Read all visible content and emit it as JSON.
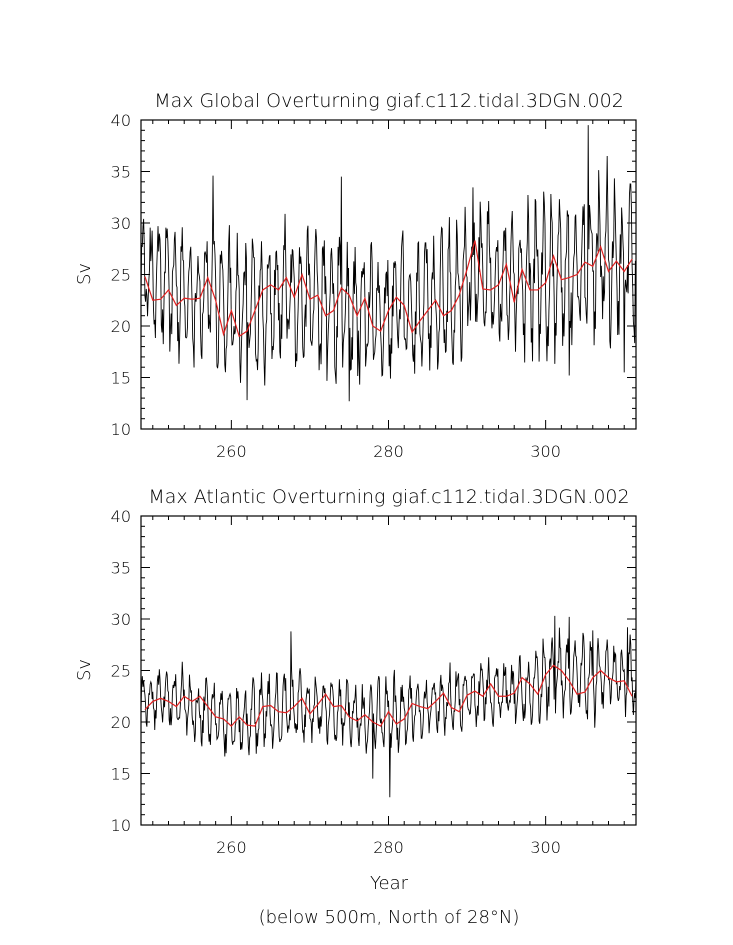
{
  "chart_data": [
    {
      "type": "line",
      "title": "Max Global Overturning giaf.c112.tidal.3DGN.002",
      "xlabel": "",
      "ylabel": "Sv",
      "xlim": [
        248.5,
        311.5
      ],
      "ylim": [
        10,
        40
      ],
      "xticks": [
        260,
        280,
        300
      ],
      "yticks": [
        10,
        15,
        20,
        25,
        30,
        35,
        40
      ],
      "series": [
        {
          "color": "#000000",
          "kind": "monthly",
          "base": [
            [
              249,
              25
            ],
            [
              252,
              24
            ],
            [
              255,
              23
            ],
            [
              258,
              23.5
            ],
            [
              261,
              21.5
            ],
            [
              264,
              22.5
            ],
            [
              267,
              23.5
            ],
            [
              270,
              22.5
            ],
            [
              273,
              22
            ],
            [
              276,
              21
            ],
            [
              279,
              21
            ],
            [
              282,
              21.5
            ],
            [
              285,
              22
            ],
            [
              288,
              23
            ],
            [
              291,
              26
            ],
            [
              294,
              25
            ],
            [
              297,
              24.5
            ],
            [
              300,
              25
            ],
            [
              303,
              25.5
            ],
            [
              306,
              26
            ],
            [
              309,
              26
            ],
            [
              311,
              26
            ]
          ],
          "amp": [
            [
              249,
              5.5
            ],
            [
              255,
              5.5
            ],
            [
              260,
              6
            ],
            [
              265,
              6
            ],
            [
              270,
              6.5
            ],
            [
              275,
              7
            ],
            [
              280,
              6
            ],
            [
              285,
              6
            ],
            [
              290,
              6.5
            ],
            [
              295,
              6
            ],
            [
              300,
              7
            ],
            [
              305,
              7
            ],
            [
              311,
              6.5
            ]
          ],
          "peaks": [
            [
              257.7,
              34.6
            ],
            [
              274.0,
              34.5
            ],
            [
              305.4,
              39.5
            ],
            [
              307.8,
              36.5
            ]
          ],
          "troughs": [
            [
              262.0,
              12.8
            ],
            [
              275.0,
              12.7
            ],
            [
              303.0,
              15.2
            ],
            [
              310.0,
              15.5
            ]
          ]
        },
        {
          "color": "#e02020",
          "kind": "annual",
          "points": [
            [
              249,
              24.8
            ],
            [
              250,
              22.5
            ],
            [
              251,
              22.6
            ],
            [
              252,
              23.5
            ],
            [
              253,
              22.0
            ],
            [
              254,
              22.7
            ],
            [
              255,
              22.6
            ],
            [
              256,
              22.7
            ],
            [
              257,
              24.7
            ],
            [
              258,
              22.5
            ],
            [
              259,
              19.2
            ],
            [
              260,
              21.5
            ],
            [
              261,
              19.0
            ],
            [
              262,
              19.5
            ],
            [
              263,
              21.5
            ],
            [
              264,
              23.5
            ],
            [
              265,
              24.0
            ],
            [
              266,
              23.5
            ],
            [
              267,
              24.7
            ],
            [
              268,
              22.8
            ],
            [
              269,
              25.0
            ],
            [
              270,
              22.6
            ],
            [
              271,
              23.0
            ],
            [
              272,
              21.0
            ],
            [
              273,
              21.5
            ],
            [
              274,
              23.7
            ],
            [
              275,
              23.0
            ],
            [
              276,
              21.0
            ],
            [
              277,
              22.7
            ],
            [
              278,
              20.0
            ],
            [
              279,
              19.5
            ],
            [
              280,
              21.5
            ],
            [
              281,
              22.8
            ],
            [
              282,
              22.0
            ],
            [
              283,
              19.4
            ],
            [
              284,
              20.5
            ],
            [
              285,
              21.5
            ],
            [
              286,
              22.5
            ],
            [
              287,
              21.0
            ],
            [
              288,
              21.5
            ],
            [
              289,
              23.0
            ],
            [
              290,
              25.5
            ],
            [
              291,
              28.3
            ],
            [
              292,
              23.6
            ],
            [
              293,
              23.5
            ],
            [
              294,
              24.0
            ],
            [
              295,
              26.0
            ],
            [
              296,
              22.3
            ],
            [
              297,
              25.5
            ],
            [
              298,
              23.5
            ],
            [
              299,
              23.5
            ],
            [
              300,
              24.2
            ],
            [
              301,
              26.8
            ],
            [
              302,
              24.5
            ],
            [
              303,
              24.7
            ],
            [
              304,
              25.0
            ],
            [
              305,
              26.2
            ],
            [
              306,
              25.8
            ],
            [
              307,
              27.7
            ],
            [
              308,
              25.3
            ],
            [
              309,
              26.3
            ],
            [
              310,
              25.3
            ],
            [
              311,
              26.5
            ]
          ]
        }
      ]
    },
    {
      "type": "line",
      "title": "Max Atlantic Overturning giaf.c112.tidal.3DGN.002",
      "xlabel": "Year",
      "ylabel": "Sv",
      "xlim": [
        248.5,
        311.5
      ],
      "ylim": [
        10,
        40
      ],
      "xticks": [
        260,
        280,
        300
      ],
      "yticks": [
        10,
        15,
        20,
        25,
        30,
        35,
        40
      ],
      "series": [
        {
          "color": "#000000",
          "kind": "monthly",
          "base": [
            [
              249,
              22
            ],
            [
              253,
              22.5
            ],
            [
              257,
              21
            ],
            [
              261,
              20
            ],
            [
              265,
              21
            ],
            [
              269,
              21.5
            ],
            [
              273,
              21
            ],
            [
              277,
              20.5
            ],
            [
              281,
              20.5
            ],
            [
              285,
              21.5
            ],
            [
              289,
              22.5
            ],
            [
              293,
              23
            ],
            [
              297,
              23
            ],
            [
              301,
              24.5
            ],
            [
              305,
              24.5
            ],
            [
              309,
              24
            ],
            [
              311,
              24
            ]
          ],
          "amp": [
            [
              249,
              2.5
            ],
            [
              255,
              3
            ],
            [
              260,
              3
            ],
            [
              265,
              3.5
            ],
            [
              270,
              3
            ],
            [
              275,
              3
            ],
            [
              280,
              3.5
            ],
            [
              285,
              2.5
            ],
            [
              290,
              3
            ],
            [
              295,
              3
            ],
            [
              300,
              3.5
            ],
            [
              305,
              3.5
            ],
            [
              311,
              3.5
            ]
          ],
          "peaks": [
            [
              267.6,
              28.8
            ],
            [
              301.2,
              30.3
            ],
            [
              303.0,
              30.2
            ],
            [
              306.0,
              28.9
            ],
            [
              310.4,
              29.2
            ]
          ],
          "troughs": [
            [
              280.2,
              12.7
            ],
            [
              278.0,
              14.5
            ]
          ]
        },
        {
          "color": "#e02020",
          "kind": "annual",
          "points": [
            [
              249,
              21.2
            ],
            [
              250,
              22.0
            ],
            [
              251,
              22.3
            ],
            [
              252,
              22.0
            ],
            [
              253,
              21.5
            ],
            [
              254,
              22.5
            ],
            [
              255,
              22.0
            ],
            [
              256,
              22.5
            ],
            [
              257,
              21.5
            ],
            [
              258,
              20.5
            ],
            [
              259,
              20.3
            ],
            [
              260,
              19.6
            ],
            [
              261,
              20.5
            ],
            [
              262,
              19.7
            ],
            [
              263,
              19.6
            ],
            [
              264,
              21.5
            ],
            [
              265,
              21.6
            ],
            [
              266,
              21.0
            ],
            [
              267,
              20.9
            ],
            [
              268,
              21.5
            ],
            [
              269,
              22.3
            ],
            [
              270,
              20.8
            ],
            [
              271,
              21.7
            ],
            [
              272,
              22.7
            ],
            [
              273,
              21.5
            ],
            [
              274,
              21.6
            ],
            [
              275,
              20.5
            ],
            [
              276,
              20.1
            ],
            [
              277,
              20.7
            ],
            [
              278,
              20.0
            ],
            [
              279,
              19.6
            ],
            [
              280,
              21.0
            ],
            [
              281,
              19.8
            ],
            [
              282,
              20.3
            ],
            [
              283,
              21.8
            ],
            [
              284,
              21.5
            ],
            [
              285,
              21.3
            ],
            [
              286,
              22.0
            ],
            [
              287,
              22.8
            ],
            [
              288,
              21.4
            ],
            [
              289,
              21.0
            ],
            [
              290,
              22.6
            ],
            [
              291,
              23.0
            ],
            [
              292,
              22.5
            ],
            [
              293,
              23.7
            ],
            [
              294,
              22.5
            ],
            [
              295,
              22.5
            ],
            [
              296,
              22.8
            ],
            [
              297,
              24.3
            ],
            [
              298,
              23.7
            ],
            [
              299,
              22.7
            ],
            [
              300,
              24.6
            ],
            [
              301,
              25.5
            ],
            [
              302,
              25.0
            ],
            [
              303,
              24.0
            ],
            [
              304,
              22.7
            ],
            [
              305,
              22.9
            ],
            [
              306,
              24.3
            ],
            [
              307,
              25.0
            ],
            [
              308,
              24.3
            ],
            [
              309,
              23.9
            ],
            [
              310,
              24.0
            ],
            [
              311,
              22.5
            ]
          ]
        }
      ]
    }
  ],
  "footnote": "(below 500m, North of 28°N)"
}
